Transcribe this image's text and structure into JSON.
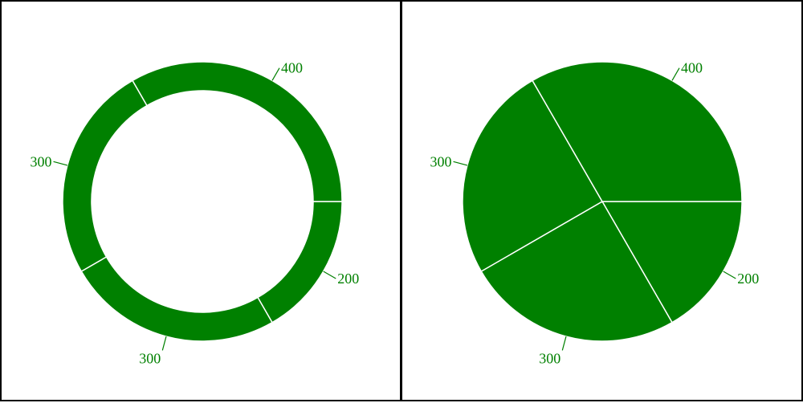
{
  "colors": {
    "slice": "#008000",
    "separator": "#ffffff",
    "label": "#008000",
    "border": "#000000"
  },
  "chart_data": [
    {
      "type": "pie",
      "variant": "donut",
      "values": [
        200,
        300,
        300,
        400
      ],
      "labels": [
        "200",
        "300",
        "300",
        "400"
      ],
      "start": "3 o'clock",
      "direction": "clockwise"
    },
    {
      "type": "pie",
      "values": [
        200,
        300,
        300,
        400
      ],
      "labels": [
        "200",
        "300",
        "300",
        "400"
      ],
      "start": "3 o'clock",
      "direction": "clockwise"
    }
  ]
}
